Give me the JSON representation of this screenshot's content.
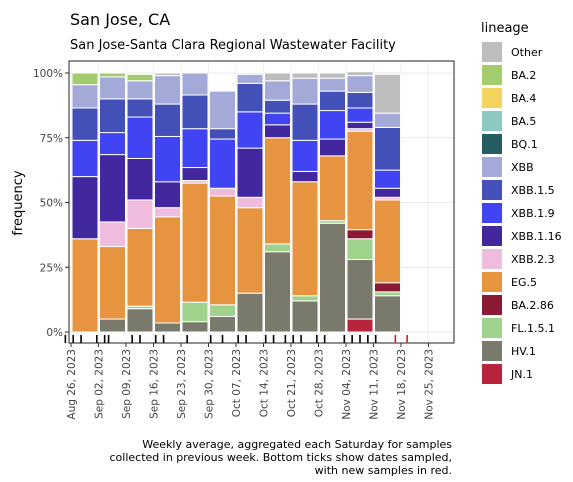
{
  "title": "San Jose, CA",
  "subtitle": "San Jose-Santa Clara Regional Wastewater Facility",
  "caption_lines": [
    "Weekly average, aggregated each Saturday for samples",
    "collected in previous week. Bottom ticks show dates sampled,",
    "with new samples in red."
  ],
  "chart_data": {
    "type": "bar",
    "stacked": true,
    "ylabel": "frequency",
    "xlabel": "",
    "yticks": [
      "0%",
      "25%",
      "50%",
      "75%",
      "100%"
    ],
    "ylim": [
      0,
      1
    ],
    "grid": true,
    "legend_title": "lineage",
    "legend_position": "right",
    "x_tick_labels": [
      "Aug 26, 2023",
      "Sep 02, 2023",
      "Sep 09, 2023",
      "Sep 16, 2023",
      "Sep 23, 2023",
      "Sep 30, 2023",
      "Oct 07, 2023",
      "Oct 14, 2023",
      "Oct 21, 2023",
      "Oct 28, 2023",
      "Nov 04, 2023",
      "Nov 11, 2023",
      "Nov 18, 2023",
      "Nov 25, 2023"
    ],
    "weeks": [
      "Aug 26, 2023",
      "Sep 02, 2023",
      "Sep 09, 2023",
      "Sep 16, 2023",
      "Sep 23, 2023",
      "Sep 30, 2023",
      "Oct 07, 2023",
      "Oct 14, 2023",
      "Oct 21, 2023",
      "Oct 28, 2023",
      "Nov 04, 2023",
      "Nov 11, 2023"
    ],
    "series": [
      {
        "name": "JN.1",
        "color": "#b8243c",
        "values": [
          0,
          0,
          0,
          0,
          0,
          0,
          0,
          0,
          0,
          0,
          0.05,
          0
        ]
      },
      {
        "name": "HV.1",
        "color": "#7a7a6c",
        "values": [
          0,
          0.05,
          0.09,
          0.035,
          0.04,
          0.06,
          0.15,
          0.31,
          0.12,
          0.42,
          0.23,
          0.14
        ]
      },
      {
        "name": "FL.1.5.1",
        "color": "#9fd28a",
        "values": [
          0,
          0,
          0.01,
          0,
          0.075,
          0.045,
          0,
          0.03,
          0.02,
          0.01,
          0.08,
          0.015
        ]
      },
      {
        "name": "BA.2.86",
        "color": "#8a1a33",
        "values": [
          0,
          0,
          0,
          0,
          0,
          0,
          0,
          0,
          0,
          0,
          0.035,
          0.035
        ]
      },
      {
        "name": "EG.5",
        "color": "#e69440",
        "values": [
          0.36,
          0.28,
          0.3,
          0.41,
          0.46,
          0.42,
          0.33,
          0.41,
          0.44,
          0.25,
          0.38,
          0.32
        ]
      },
      {
        "name": "XBB.2.3",
        "color": "#efbcdd",
        "values": [
          0,
          0.095,
          0.11,
          0.035,
          0.01,
          0.03,
          0.04,
          0,
          0,
          0,
          0.01,
          0.01
        ]
      },
      {
        "name": "XBB.1.16",
        "color": "#42279e",
        "values": [
          0.24,
          0.26,
          0.16,
          0.1,
          0.05,
          0,
          0.19,
          0.05,
          0.04,
          0.065,
          0.025,
          0.035
        ]
      },
      {
        "name": "XBB.1.9",
        "color": "#4144f2",
        "values": [
          0.14,
          0.085,
          0.16,
          0.175,
          0.15,
          0.19,
          0.14,
          0.045,
          0.12,
          0.11,
          0.055,
          0.07
        ]
      },
      {
        "name": "XBB.1.5",
        "color": "#4350b8",
        "values": [
          0.125,
          0.13,
          0.07,
          0.125,
          0.13,
          0.04,
          0.11,
          0.05,
          0.14,
          0.075,
          0.06,
          0.165
        ]
      },
      {
        "name": "XBB",
        "color": "#a3aad8",
        "values": [
          0.09,
          0.085,
          0.07,
          0.11,
          0.085,
          0.145,
          0.035,
          0.075,
          0.1,
          0.05,
          0.065,
          0.055
        ]
      },
      {
        "name": "BQ.1",
        "color": "#255e60",
        "values": [
          0,
          0,
          0,
          0,
          0,
          0,
          0,
          0,
          0,
          0,
          0,
          0
        ]
      },
      {
        "name": "BA.5",
        "color": "#8ec9c1",
        "values": [
          0,
          0,
          0,
          0,
          0,
          0,
          0,
          0,
          0,
          0,
          0,
          0
        ]
      },
      {
        "name": "BA.4",
        "color": "#f4d35e",
        "values": [
          0,
          0,
          0,
          0,
          0,
          0,
          0,
          0,
          0,
          0,
          0,
          0
        ]
      },
      {
        "name": "BA.2",
        "color": "#a3cc6e",
        "values": [
          0.045,
          0.015,
          0.025,
          0,
          0,
          0,
          0,
          0,
          0,
          0,
          0,
          0
        ]
      },
      {
        "name": "Other",
        "color": "#bdbdbd",
        "values": [
          0,
          0,
          0,
          0.01,
          0,
          0,
          0.005,
          0.03,
          0.02,
          0.02,
          0.015,
          0.15
        ]
      }
    ],
    "legend_order": [
      "Other",
      "BA.2",
      "BA.4",
      "BA.5",
      "BQ.1",
      "XBB",
      "XBB.1.5",
      "XBB.1.9",
      "XBB.1.16",
      "XBB.2.3",
      "EG.5",
      "BA.2.86",
      "FL.1.5.1",
      "HV.1",
      "JN.1"
    ],
    "sample_dates": {
      "black": [
        "2023-08-21",
        "2023-08-23",
        "2023-08-25",
        "2023-08-29",
        "2023-08-31",
        "2023-09-01",
        "2023-09-07",
        "2023-09-09",
        "2023-09-13",
        "2023-09-15",
        "2023-09-21",
        "2023-09-27",
        "2023-09-30",
        "2023-10-04",
        "2023-10-06",
        "2023-10-11",
        "2023-10-13",
        "2023-10-16",
        "2023-10-18",
        "2023-10-20",
        "2023-10-24",
        "2023-10-26",
        "2023-10-31",
        "2023-11-02",
        "2023-11-04",
        "2023-11-06",
        "2023-11-08"
      ],
      "red": [
        "2023-11-13",
        "2023-11-16"
      ]
    }
  }
}
